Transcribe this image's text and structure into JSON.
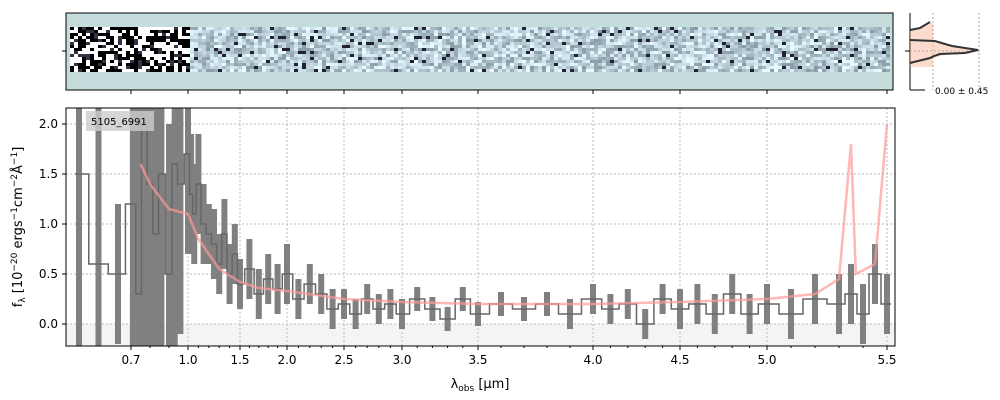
{
  "chart_data": {
    "type": "line",
    "object_label": "5105_6991",
    "xlabel": {
      "main": "λ",
      "sub": "obs",
      "rest": " [μm]"
    },
    "ylabel": {
      "a": "f",
      "a_sub": "λ",
      "b": " [10",
      "b_sup": "−20",
      "c": " ergs",
      "c_sup": "−1",
      "d": "cm",
      "d_sup": "−2",
      "e": "Å",
      "e_sup": "−1",
      "f": "]"
    },
    "xticks": [
      "0.7",
      "1.0",
      "1.5",
      "2.0",
      "2.5",
      "3.0",
      "3.5",
      "4.0",
      "4.5",
      "5.0",
      "5.5"
    ],
    "yticks": [
      "0.0",
      "0.5",
      "1.0",
      "1.5",
      "2.0"
    ],
    "ylim": [
      -0.22,
      2.16
    ],
    "xlim": [
      0.6,
      5.52
    ],
    "grid": true,
    "hist_label": "0.00 ± 0.45",
    "colors": {
      "flux": "#808080",
      "model": "#ff9999",
      "hist_line": "#333333",
      "hist_fill": "#f4a582",
      "panel_bg": "#c4dcdc"
    },
    "flux": [
      [
        0.62,
        1.5,
        3
      ],
      [
        0.65,
        0.6,
        3
      ],
      [
        0.68,
        0.5,
        0.7
      ],
      [
        0.71,
        1.2,
        3
      ],
      [
        0.74,
        0.3,
        3
      ],
      [
        0.77,
        2.0,
        3
      ],
      [
        0.8,
        1.4,
        3
      ],
      [
        0.83,
        0.9,
        3
      ],
      [
        0.86,
        1.5,
        2
      ],
      [
        0.9,
        0.5,
        1.5
      ],
      [
        0.93,
        1.6,
        2
      ],
      [
        0.96,
        1.4,
        1.5
      ],
      [
        1.0,
        1.7,
        1
      ],
      [
        1.03,
        1.3,
        0.6
      ],
      [
        1.06,
        1.1,
        0.5
      ],
      [
        1.1,
        1.4,
        0.5
      ],
      [
        1.15,
        1.0,
        0.4
      ],
      [
        1.2,
        0.9,
        0.3
      ],
      [
        1.25,
        0.8,
        0.35
      ],
      [
        1.3,
        0.6,
        0.3
      ],
      [
        1.35,
        0.9,
        0.35
      ],
      [
        1.4,
        0.5,
        0.3
      ],
      [
        1.45,
        0.7,
        0.3
      ],
      [
        1.5,
        0.4,
        0.25
      ],
      [
        1.6,
        0.55,
        0.3
      ],
      [
        1.7,
        0.3,
        0.25
      ],
      [
        1.8,
        0.45,
        0.25
      ],
      [
        1.9,
        0.35,
        0.25
      ],
      [
        2.0,
        0.5,
        0.3
      ],
      [
        2.1,
        0.25,
        0.2
      ],
      [
        2.2,
        0.4,
        0.2
      ],
      [
        2.3,
        0.3,
        0.2
      ],
      [
        2.4,
        0.15,
        0.2
      ],
      [
        2.5,
        0.2,
        0.15
      ],
      [
        2.6,
        0.1,
        0.15
      ],
      [
        2.7,
        0.25,
        0.15
      ],
      [
        2.8,
        0.15,
        0.15
      ],
      [
        2.9,
        0.2,
        0.15
      ],
      [
        3.0,
        0.1,
        0.15
      ],
      [
        3.1,
        0.25,
        0.12
      ],
      [
        3.2,
        0.15,
        0.12
      ],
      [
        3.3,
        0.05,
        0.12
      ],
      [
        3.4,
        0.25,
        0.12
      ],
      [
        3.5,
        0.1,
        0.12
      ],
      [
        3.6,
        0.2,
        0.12
      ],
      [
        3.7,
        0.15,
        0.12
      ],
      [
        3.8,
        0.2,
        0.12
      ],
      [
        3.9,
        0.1,
        0.15
      ],
      [
        4.0,
        0.25,
        0.15
      ],
      [
        4.1,
        0.15,
        0.15
      ],
      [
        4.2,
        0.2,
        0.15
      ],
      [
        4.3,
        0.0,
        0.15
      ],
      [
        4.4,
        0.25,
        0.15
      ],
      [
        4.5,
        0.15,
        0.2
      ],
      [
        4.6,
        0.2,
        0.2
      ],
      [
        4.7,
        0.1,
        0.2
      ],
      [
        4.8,
        0.3,
        0.2
      ],
      [
        4.9,
        0.1,
        0.2
      ],
      [
        5.0,
        0.2,
        0.2
      ],
      [
        5.1,
        0.1,
        0.25
      ],
      [
        5.2,
        0.25,
        0.25
      ],
      [
        5.3,
        0.2,
        0.3
      ],
      [
        5.35,
        0.3,
        0.3
      ],
      [
        5.4,
        0.1,
        0.3
      ],
      [
        5.45,
        0.5,
        0.3
      ],
      [
        5.5,
        0.2,
        0.3
      ]
    ],
    "model": [
      [
        0.75,
        1.6
      ],
      [
        0.8,
        1.4
      ],
      [
        0.9,
        1.15
      ],
      [
        1.0,
        1.1
      ],
      [
        1.1,
        0.85
      ],
      [
        1.2,
        0.7
      ],
      [
        1.3,
        0.55
      ],
      [
        1.5,
        0.42
      ],
      [
        1.7,
        0.36
      ],
      [
        2.0,
        0.33
      ],
      [
        2.5,
        0.25
      ],
      [
        3.0,
        0.22
      ],
      [
        3.5,
        0.2
      ],
      [
        4.0,
        0.2
      ],
      [
        4.5,
        0.22
      ],
      [
        5.0,
        0.25
      ],
      [
        5.2,
        0.3
      ],
      [
        5.3,
        0.45
      ],
      [
        5.35,
        1.8
      ],
      [
        5.37,
        0.5
      ],
      [
        5.45,
        0.6
      ],
      [
        5.5,
        2.0
      ]
    ]
  }
}
